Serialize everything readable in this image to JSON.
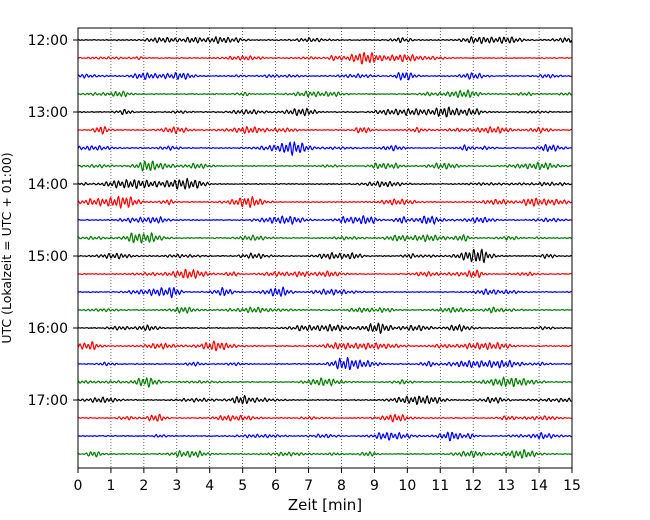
{
  "chart_data": {
    "type": "line",
    "title": "",
    "xlabel": "Zeit  [min]",
    "ylabel": "UTC (Lokalzeit = UTC + 01:00)",
    "xlim": [
      0,
      15
    ],
    "x_ticks": [
      0,
      1,
      2,
      3,
      4,
      5,
      6,
      7,
      8,
      9,
      10,
      11,
      12,
      13,
      14,
      15
    ],
    "y_tick_labels": [
      "12:00",
      "13:00",
      "14:00",
      "15:00",
      "16:00",
      "17:00"
    ],
    "trace_interval_min": 15,
    "traces_per_hour": 4,
    "trace_count": 24,
    "first_trace": "12:00",
    "trace_colors": [
      "#000000",
      "#ff0000",
      "#0000ff",
      "#007f00"
    ],
    "grid": "vertical dotted at each minute",
    "legend": "none"
  }
}
